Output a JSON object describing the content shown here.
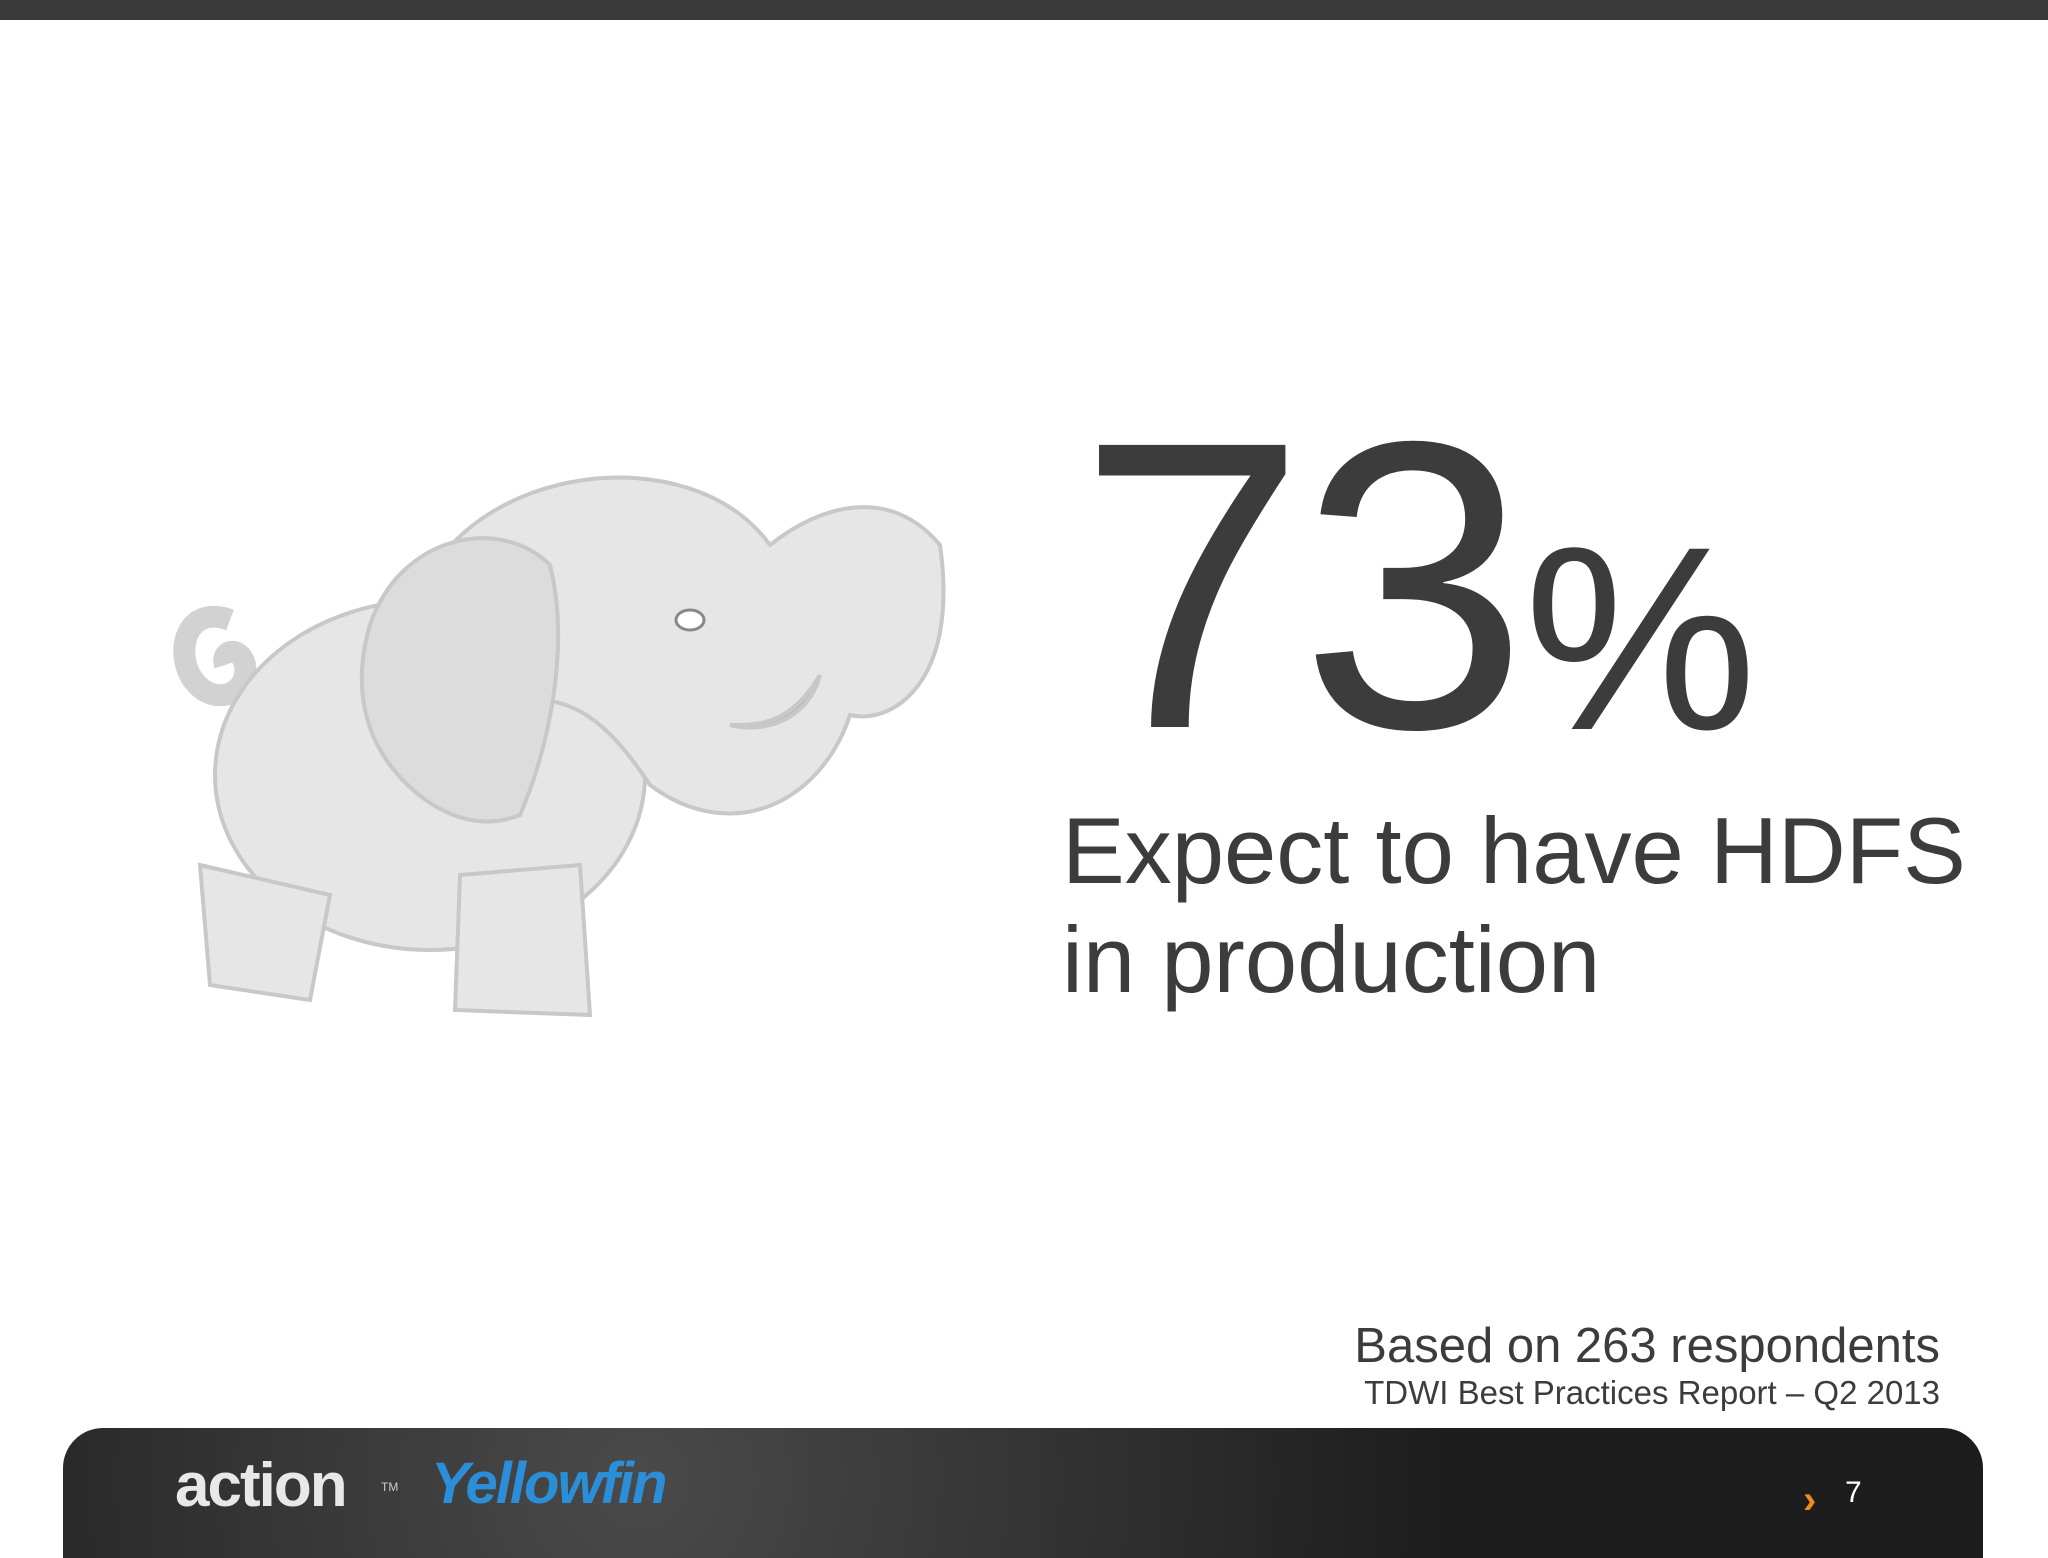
{
  "stat": {
    "number": "73",
    "unit": "%",
    "caption_lines": [
      "Expect to have HDFS",
      "in production"
    ]
  },
  "source": {
    "note": "Based on 263 respondents",
    "report": "TDWI Best Practices Report – Q2 2013"
  },
  "footer": {
    "logos": [
      "action",
      "Yellowfin"
    ],
    "trademark": "TM",
    "page_number": "7"
  }
}
